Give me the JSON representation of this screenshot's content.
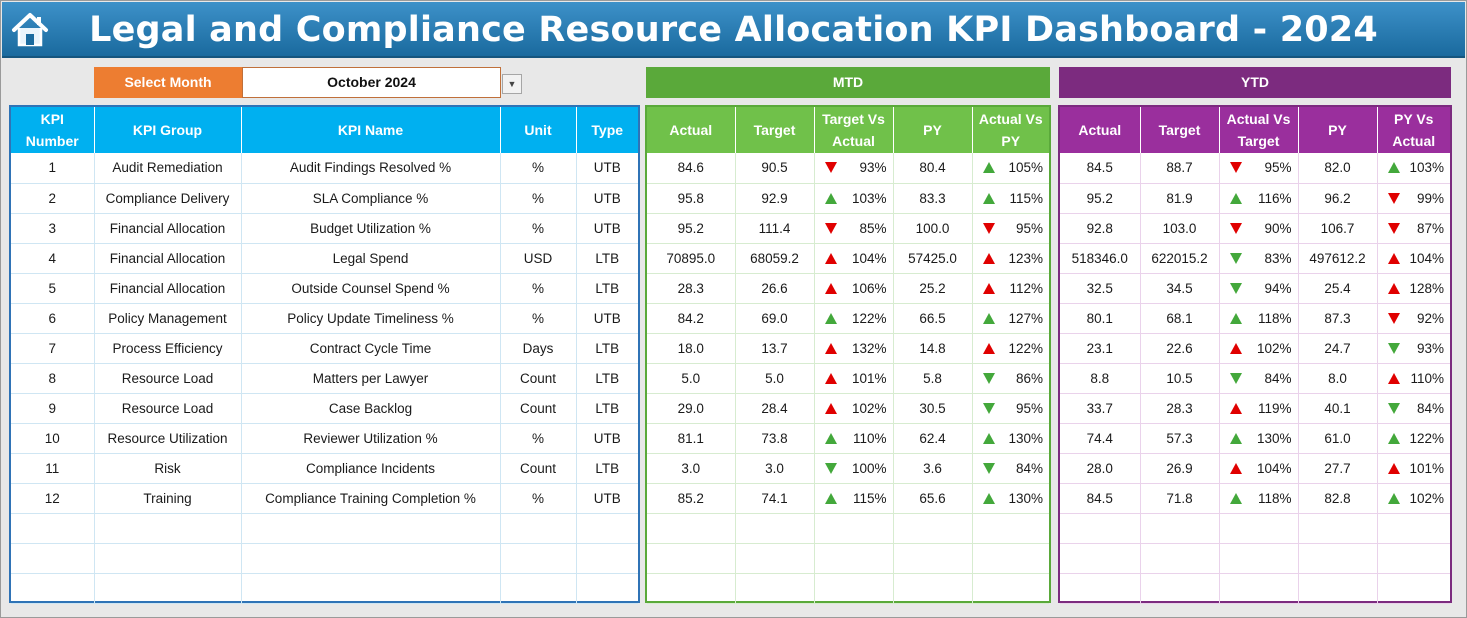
{
  "header": {
    "title": "Legal and Compliance Resource Allocation KPI Dashboard - 2024",
    "home_icon": "home-icon"
  },
  "selector": {
    "label": "Select Month",
    "value": "October 2024"
  },
  "sections": {
    "mtd": "MTD",
    "ytd": "YTD"
  },
  "columns": {
    "left": [
      "KPI Number",
      "KPI Group",
      "KPI Name",
      "Unit",
      "Type"
    ],
    "mtd": [
      "Actual",
      "Target",
      "Target Vs Actual",
      "PY",
      "Actual Vs PY"
    ],
    "ytd": [
      "Actual",
      "Target",
      "Actual Vs Target",
      "PY",
      "PY Vs Actual"
    ]
  },
  "colors": {
    "up_good": "#43a83b",
    "bad": "#e00000",
    "mtd": "#5aa93a",
    "ytd": "#7c2b7f",
    "kpi": "#00b0f0"
  },
  "rows": [
    {
      "num": "1",
      "group": "Audit Remediation",
      "name": "Audit Findings Resolved %",
      "unit": "%",
      "type": "UTB",
      "mtd": {
        "actual": "84.6",
        "target": "90.5",
        "tva": "93%",
        "tva_dir": "down",
        "tva_color": "red",
        "py": "80.4",
        "avp": "105%",
        "avp_dir": "up",
        "avp_color": "green"
      },
      "ytd": {
        "actual": "84.5",
        "target": "88.7",
        "avt": "95%",
        "avt_dir": "down",
        "avt_color": "red",
        "py": "82.0",
        "pva": "103%",
        "pva_dir": "up",
        "pva_color": "green"
      }
    },
    {
      "num": "2",
      "group": "Compliance Delivery",
      "name": "SLA Compliance %",
      "unit": "%",
      "type": "UTB",
      "mtd": {
        "actual": "95.8",
        "target": "92.9",
        "tva": "103%",
        "tva_dir": "up",
        "tva_color": "green",
        "py": "83.3",
        "avp": "115%",
        "avp_dir": "up",
        "avp_color": "green"
      },
      "ytd": {
        "actual": "95.2",
        "target": "81.9",
        "avt": "116%",
        "avt_dir": "up",
        "avt_color": "green",
        "py": "96.2",
        "pva": "99%",
        "pva_dir": "down",
        "pva_color": "red"
      }
    },
    {
      "num": "3",
      "group": "Financial Allocation",
      "name": "Budget Utilization %",
      "unit": "%",
      "type": "UTB",
      "mtd": {
        "actual": "95.2",
        "target": "111.4",
        "tva": "85%",
        "tva_dir": "down",
        "tva_color": "red",
        "py": "100.0",
        "avp": "95%",
        "avp_dir": "down",
        "avp_color": "red"
      },
      "ytd": {
        "actual": "92.8",
        "target": "103.0",
        "avt": "90%",
        "avt_dir": "down",
        "avt_color": "red",
        "py": "106.7",
        "pva": "87%",
        "pva_dir": "down",
        "pva_color": "red"
      }
    },
    {
      "num": "4",
      "group": "Financial Allocation",
      "name": "Legal Spend",
      "unit": "USD",
      "type": "LTB",
      "mtd": {
        "actual": "70895.0",
        "target": "68059.2",
        "tva": "104%",
        "tva_dir": "up",
        "tva_color": "red",
        "py": "57425.0",
        "avp": "123%",
        "avp_dir": "up",
        "avp_color": "red"
      },
      "ytd": {
        "actual": "518346.0",
        "target": "622015.2",
        "avt": "83%",
        "avt_dir": "down",
        "avt_color": "green",
        "py": "497612.2",
        "pva": "104%",
        "pva_dir": "up",
        "pva_color": "red"
      }
    },
    {
      "num": "5",
      "group": "Financial Allocation",
      "name": "Outside Counsel Spend %",
      "unit": "%",
      "type": "LTB",
      "mtd": {
        "actual": "28.3",
        "target": "26.6",
        "tva": "106%",
        "tva_dir": "up",
        "tva_color": "red",
        "py": "25.2",
        "avp": "112%",
        "avp_dir": "up",
        "avp_color": "red"
      },
      "ytd": {
        "actual": "32.5",
        "target": "34.5",
        "avt": "94%",
        "avt_dir": "down",
        "avt_color": "green",
        "py": "25.4",
        "pva": "128%",
        "pva_dir": "up",
        "pva_color": "red"
      }
    },
    {
      "num": "6",
      "group": "Policy Management",
      "name": "Policy Update Timeliness %",
      "unit": "%",
      "type": "UTB",
      "mtd": {
        "actual": "84.2",
        "target": "69.0",
        "tva": "122%",
        "tva_dir": "up",
        "tva_color": "green",
        "py": "66.5",
        "avp": "127%",
        "avp_dir": "up",
        "avp_color": "green"
      },
      "ytd": {
        "actual": "80.1",
        "target": "68.1",
        "avt": "118%",
        "avt_dir": "up",
        "avt_color": "green",
        "py": "87.3",
        "pva": "92%",
        "pva_dir": "down",
        "pva_color": "red"
      }
    },
    {
      "num": "7",
      "group": "Process Efficiency",
      "name": "Contract Cycle Time",
      "unit": "Days",
      "type": "LTB",
      "mtd": {
        "actual": "18.0",
        "target": "13.7",
        "tva": "132%",
        "tva_dir": "up",
        "tva_color": "red",
        "py": "14.8",
        "avp": "122%",
        "avp_dir": "up",
        "avp_color": "red"
      },
      "ytd": {
        "actual": "23.1",
        "target": "22.6",
        "avt": "102%",
        "avt_dir": "up",
        "avt_color": "red",
        "py": "24.7",
        "pva": "93%",
        "pva_dir": "down",
        "pva_color": "green"
      }
    },
    {
      "num": "8",
      "group": "Resource Load",
      "name": "Matters per Lawyer",
      "unit": "Count",
      "type": "LTB",
      "mtd": {
        "actual": "5.0",
        "target": "5.0",
        "tva": "101%",
        "tva_dir": "up",
        "tva_color": "red",
        "py": "5.8",
        "avp": "86%",
        "avp_dir": "down",
        "avp_color": "green"
      },
      "ytd": {
        "actual": "8.8",
        "target": "10.5",
        "avt": "84%",
        "avt_dir": "down",
        "avt_color": "green",
        "py": "8.0",
        "pva": "110%",
        "pva_dir": "up",
        "pva_color": "red"
      }
    },
    {
      "num": "9",
      "group": "Resource Load",
      "name": "Case Backlog",
      "unit": "Count",
      "type": "LTB",
      "mtd": {
        "actual": "29.0",
        "target": "28.4",
        "tva": "102%",
        "tva_dir": "up",
        "tva_color": "red",
        "py": "30.5",
        "avp": "95%",
        "avp_dir": "down",
        "avp_color": "green"
      },
      "ytd": {
        "actual": "33.7",
        "target": "28.3",
        "avt": "119%",
        "avt_dir": "up",
        "avt_color": "red",
        "py": "40.1",
        "pva": "84%",
        "pva_dir": "down",
        "pva_color": "green"
      }
    },
    {
      "num": "10",
      "group": "Resource Utilization",
      "name": "Reviewer Utilization %",
      "unit": "%",
      "type": "UTB",
      "mtd": {
        "actual": "81.1",
        "target": "73.8",
        "tva": "110%",
        "tva_dir": "up",
        "tva_color": "green",
        "py": "62.4",
        "avp": "130%",
        "avp_dir": "up",
        "avp_color": "green"
      },
      "ytd": {
        "actual": "74.4",
        "target": "57.3",
        "avt": "130%",
        "avt_dir": "up",
        "avt_color": "green",
        "py": "61.0",
        "pva": "122%",
        "pva_dir": "up",
        "pva_color": "green"
      }
    },
    {
      "num": "11",
      "group": "Risk",
      "name": "Compliance Incidents",
      "unit": "Count",
      "type": "LTB",
      "mtd": {
        "actual": "3.0",
        "target": "3.0",
        "tva": "100%",
        "tva_dir": "down",
        "tva_color": "green",
        "py": "3.6",
        "avp": "84%",
        "avp_dir": "down",
        "avp_color": "green"
      },
      "ytd": {
        "actual": "28.0",
        "target": "26.9",
        "avt": "104%",
        "avt_dir": "up",
        "avt_color": "red",
        "py": "27.7",
        "pva": "101%",
        "pva_dir": "up",
        "pva_color": "red"
      }
    },
    {
      "num": "12",
      "group": "Training",
      "name": "Compliance Training Completion %",
      "unit": "%",
      "type": "UTB",
      "mtd": {
        "actual": "85.2",
        "target": "74.1",
        "tva": "115%",
        "tva_dir": "up",
        "tva_color": "green",
        "py": "65.6",
        "avp": "130%",
        "avp_dir": "up",
        "avp_color": "green"
      },
      "ytd": {
        "actual": "84.5",
        "target": "71.8",
        "avt": "118%",
        "avt_dir": "up",
        "avt_color": "green",
        "py": "82.8",
        "pva": "102%",
        "pva_dir": "up",
        "pva_color": "green"
      }
    }
  ]
}
